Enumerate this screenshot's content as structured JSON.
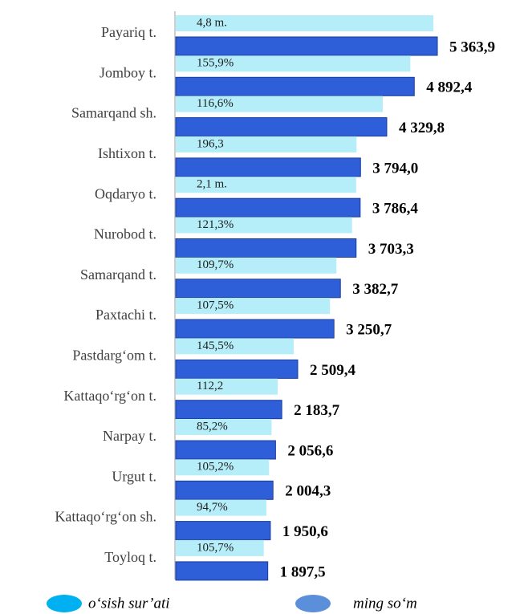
{
  "chart_data": {
    "type": "bar",
    "orientation": "horizontal",
    "categories": [
      "Payariq t.",
      "Jomboy t.",
      "Samarqand sh.",
      "Ishtixon t.",
      "Oqdaryo t.",
      "Nurobod t.",
      "Samarqand t.",
      "Paxtachi t.",
      "Pastdarg‘om t.",
      "Kattaqo‘rg‘on t.",
      "Narpay t.",
      "Urgut t.",
      "Kattaqo‘rg‘on sh.",
      "Toyloq t."
    ],
    "series": [
      {
        "name": "o‘sish sur’ati",
        "color": "#b5eef8",
        "legend_color": "#00b0f0",
        "values": [
          4.8,
          155.9,
          116.6,
          196.3,
          2.1,
          121.3,
          109.7,
          107.5,
          145.5,
          112.2,
          85.2,
          105.2,
          94.7,
          105.7
        ],
        "value_labels": [
          "4,8 m.",
          "155,9%",
          "116,6%",
          "196,3",
          "2,1 m.",
          "121,3%",
          "109,7%",
          "107,5%",
          "145,5%",
          "112,2",
          "85,2%",
          "105,2%",
          "94,7%",
          "105,7%"
        ]
      },
      {
        "name": "ming so‘m",
        "color": "#2f5fd8",
        "legend_color": "#5b8fd9",
        "values": [
          5363.9,
          4892.4,
          4329.8,
          3794.0,
          3786.4,
          3703.3,
          3382.7,
          3250.7,
          2509.4,
          2183.7,
          2056.6,
          2004.3,
          1950.6,
          1897.5
        ],
        "value_labels": [
          "5 363,9",
          "4 892,4",
          "4 329,8",
          "3 794,0",
          "3 786,4",
          "3 703,3",
          "3 382,7",
          "3 250,7",
          "2 509,4",
          "2 183,7",
          "2 056,6",
          "2 004,3",
          "1 950,6",
          "1 897,5"
        ]
      }
    ]
  }
}
